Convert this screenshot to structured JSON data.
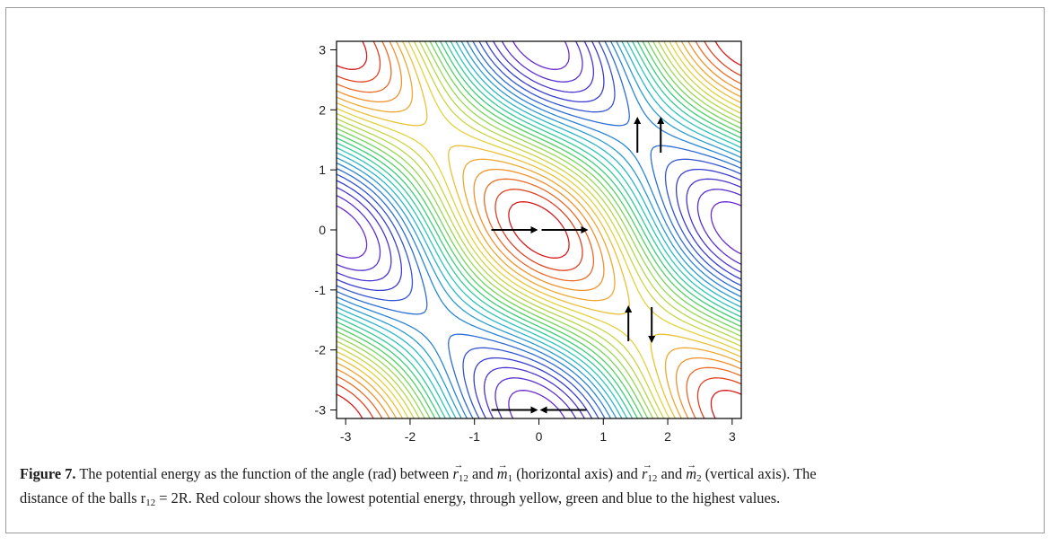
{
  "chart_data": {
    "type": "contour",
    "x_ticks": [
      "-3",
      "-2",
      "-1",
      "0",
      "1",
      "2",
      "3"
    ],
    "y_ticks": [
      "3",
      "2",
      "1",
      "0",
      "-1",
      "-2",
      "-3"
    ],
    "xlim": [
      -3.14159,
      3.14159
    ],
    "ylim": [
      -3.14159,
      3.14159
    ],
    "colormap": [
      "#d7191c",
      "#f28e2b",
      "#e8d13a",
      "#a6d94e",
      "#3fcf6a",
      "#2bc4c4",
      "#2a7fd6",
      "#3a3ad0",
      "#6a2bd0"
    ],
    "colormap_order": "red lowest to violet highest",
    "potential_model": "cos(x-y) - 3*cos(x)*cos(y)",
    "contour_levels": 24,
    "annotations": [
      {
        "label": "parallel along r12",
        "x": 0,
        "y": 0,
        "arrows": [
          "right",
          "right"
        ]
      },
      {
        "label": "parallel perpendicular",
        "x": 1.71,
        "y": 1.57,
        "arrows": [
          "up",
          "up"
        ]
      },
      {
        "label": "antiparallel perpendicular",
        "x": 1.57,
        "y": -1.57,
        "arrows": [
          "up",
          "down"
        ]
      },
      {
        "label": "antiparallel along r12",
        "x": 0,
        "y": -3.0,
        "arrows": [
          "right",
          "left"
        ]
      }
    ]
  },
  "caption": {
    "label": "Figure 7.",
    "text_1": "The potential energy as the function of the angle (rad) between",
    "text_2": "and",
    "text_3": "(horizontal axis) and",
    "text_4": "and",
    "text_5": "(vertical axis). The",
    "text_6": "distance of the balls r",
    "text_7": "= 2R. Red colour shows the lowest potential energy, through yellow, green and blue to the highest values.",
    "sym_r": "r",
    "sym_m": "m",
    "sub_12": "12",
    "sub_1": "1",
    "sub_2": "2",
    "arrow_glyph": "→"
  }
}
